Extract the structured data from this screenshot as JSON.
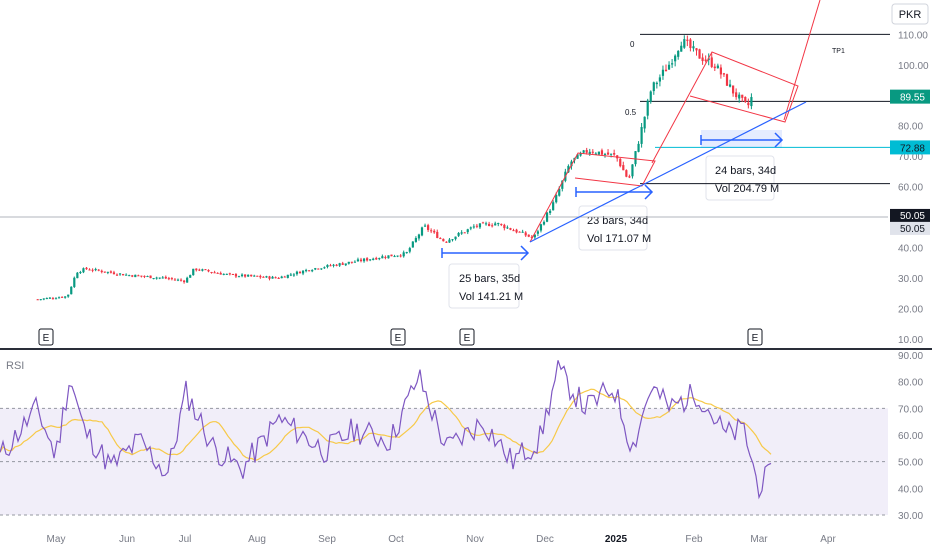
{
  "currency": "PKR",
  "price_axis": {
    "ticks": [
      "10.00",
      "20.00",
      "30.00",
      "40.00",
      "50.00",
      "60.00",
      "70.00",
      "80.00",
      "90.00",
      "100.00",
      "110.00"
    ],
    "last_price": "89.55",
    "last_price_color": "#089981",
    "level_a": "72.88",
    "level_a_color": "#00bcd4",
    "level_b": "50.05",
    "level_c": "50.05"
  },
  "rsi_axis": {
    "label": "RSI",
    "ticks": [
      "30.00",
      "40.00",
      "50.00",
      "60.00",
      "70.00",
      "80.00",
      "90.00"
    ]
  },
  "time_axis": [
    "May",
    "Jun",
    "Jul",
    "Aug",
    "Sep",
    "Oct",
    "Nov",
    "Dec",
    "2025",
    "Feb",
    "Mar",
    "Apr"
  ],
  "earnings_marker": "E",
  "fib": {
    "top_label": "0",
    "mid_label": "0.5",
    "tp_label": "TP1"
  },
  "measures": [
    {
      "bars": "25 bars, 35d",
      "vol": "Vol 141.21 M"
    },
    {
      "bars": "23 bars, 34d",
      "vol": "Vol 171.07 M"
    },
    {
      "bars": "24 bars, 34d",
      "vol": "Vol 204.79 M"
    }
  ],
  "colors": {
    "up": "#089981",
    "down": "#f23645",
    "rsi": "#7e57c2",
    "rsi_ma": "#f7c948",
    "trend": "#f23645",
    "support": "#2962ff",
    "measure": "#2962ff"
  },
  "chart_data": {
    "type": "candlestick",
    "ylim": [
      8,
      118
    ],
    "close_anchors": [
      [
        "Apr 22",
        23
      ],
      [
        "May 6",
        24
      ],
      [
        "May 10",
        32
      ],
      [
        "May 14",
        33
      ],
      [
        "Jun 1",
        31
      ],
      [
        "Jun 20",
        30
      ],
      [
        "Jul 1",
        29
      ],
      [
        "Jul 5",
        33
      ],
      [
        "Jul 20",
        31
      ],
      [
        "Aug 10",
        30
      ],
      [
        "Aug 25",
        33
      ],
      [
        "Sep 10",
        35
      ],
      [
        "Sep 25",
        37
      ],
      [
        "Oct 5",
        38
      ],
      [
        "Oct 12",
        47
      ],
      [
        "Oct 20",
        42
      ],
      [
        "Nov 1",
        47
      ],
      [
        "Nov 10",
        48
      ],
      [
        "Nov 20",
        45
      ],
      [
        "Nov 26",
        43
      ],
      [
        "Dec 5",
        55
      ],
      [
        "Dec 12",
        68
      ],
      [
        "Dec 20",
        72
      ],
      [
        "Jan 1",
        70
      ],
      [
        "Jan 6",
        62
      ],
      [
        "Jan 10",
        75
      ],
      [
        "Jan 15",
        92
      ],
      [
        "Jan 22",
        100
      ],
      [
        "Jan 27",
        108
      ],
      [
        "Feb 3",
        103
      ],
      [
        "Feb 10",
        100
      ],
      [
        "Feb 18",
        91
      ],
      [
        "Feb 24",
        86
      ],
      [
        "Feb 26",
        89.55
      ]
    ],
    "rsi": {
      "ylim": [
        30,
        90
      ],
      "band": [
        30,
        70
      ],
      "mid": 50,
      "anchors": [
        [
          0,
          52
        ],
        [
          0.04,
          70
        ],
        [
          0.06,
          52
        ],
        [
          0.075,
          82
        ],
        [
          0.09,
          62
        ],
        [
          0.12,
          48
        ],
        [
          0.15,
          58
        ],
        [
          0.18,
          45
        ],
        [
          0.2,
          76
        ],
        [
          0.23,
          55
        ],
        [
          0.26,
          47
        ],
        [
          0.3,
          66
        ],
        [
          0.35,
          54
        ],
        [
          0.38,
          62
        ],
        [
          0.42,
          58
        ],
        [
          0.45,
          82
        ],
        [
          0.48,
          55
        ],
        [
          0.52,
          65
        ],
        [
          0.55,
          50
        ],
        [
          0.58,
          58
        ],
        [
          0.6,
          84
        ],
        [
          0.63,
          70
        ],
        [
          0.66,
          78
        ],
        [
          0.68,
          55
        ],
        [
          0.7,
          78
        ],
        [
          0.72,
          70
        ],
        [
          0.75,
          76
        ],
        [
          0.78,
          60
        ],
        [
          0.8,
          62
        ],
        [
          0.815,
          41
        ],
        [
          0.83,
          45
        ]
      ]
    }
  }
}
